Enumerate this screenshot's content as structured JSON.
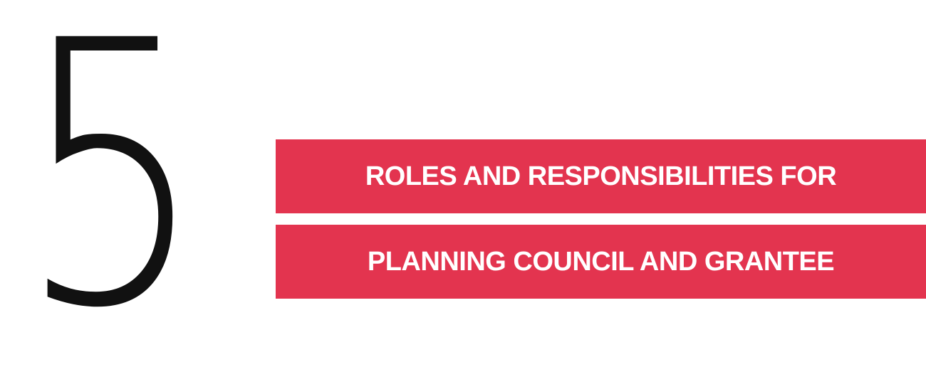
{
  "chapter": {
    "number": "5",
    "numeral_color": "#111111"
  },
  "title": {
    "line1": "ROLES AND RESPONSIBILITIES FOR",
    "line2": "PLANNING COUNCIL AND GRANTEE",
    "bar_color": "#e3344f",
    "text_color": "#ffffff"
  }
}
